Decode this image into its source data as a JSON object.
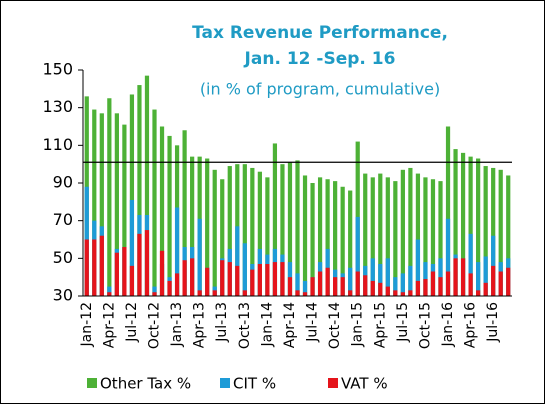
{
  "chart_data": {
    "type": "bar",
    "title": [
      "Tax Revenue Performance,",
      "Jan. 12 -Sep. 16"
    ],
    "subtitle": "(in % of program, cumulative)",
    "categories": [
      "Jan-12",
      null,
      null,
      "Apr-12",
      null,
      null,
      "Jul-12",
      null,
      null,
      "Oct-12",
      null,
      null,
      "Jan-13",
      null,
      null,
      "Apr-13",
      null,
      null,
      "Jul-13",
      null,
      null,
      "Oct-13",
      null,
      null,
      "Jan-14",
      null,
      null,
      "Apr-14",
      null,
      null,
      "Jul-14",
      null,
      null,
      "Oct-14",
      null,
      null,
      "Jan-15",
      null,
      null,
      "Apr-15",
      null,
      null,
      "Jul-15",
      null,
      null,
      "Oct-15",
      null,
      null,
      "Jan-16",
      null,
      null,
      "Apr-16",
      null,
      null,
      "Jul-16",
      null,
      null
    ],
    "series": [
      {
        "name": "Other Tax %",
        "color": "#4db136",
        "values": [
          136,
          129,
          127,
          135,
          127,
          121,
          137,
          142,
          147,
          129,
          120,
          115,
          110,
          118,
          104,
          104,
          103,
          97,
          92,
          99,
          100,
          100,
          98,
          96,
          93,
          111,
          100,
          101,
          102,
          94,
          90,
          93,
          92,
          91,
          88,
          86,
          112,
          95,
          93,
          95,
          93,
          91,
          97,
          98,
          95,
          93,
          92,
          91,
          120,
          108,
          106,
          104,
          103,
          99,
          98,
          97,
          94
        ]
      },
      {
        "name": "CIT %",
        "color": "#1e9bd7",
        "values": [
          88,
          70,
          67,
          35,
          55,
          56,
          81,
          73,
          73,
          35,
          47,
          40,
          77,
          56,
          56,
          71,
          45,
          35,
          50,
          55,
          67,
          58,
          47,
          55,
          52,
          55,
          52,
          48,
          42,
          38,
          40,
          48,
          55,
          44,
          42,
          45,
          72,
          46,
          50,
          47,
          50,
          40,
          42,
          46,
          60,
          48,
          47,
          50,
          71,
          52,
          50,
          63,
          48,
          51,
          62,
          48,
          50
        ]
      },
      {
        "name": "VAT %",
        "color": "#e5141b",
        "values": [
          60,
          60,
          62,
          32,
          53,
          56,
          46,
          63,
          65,
          32,
          54,
          38,
          42,
          49,
          50,
          33,
          45,
          33,
          49,
          48,
          46,
          33,
          44,
          47,
          47,
          48,
          48,
          40,
          33,
          32,
          40,
          43,
          45,
          40,
          40,
          33,
          43,
          41,
          38,
          37,
          35,
          33,
          32,
          33,
          38,
          39,
          43,
          40,
          43,
          50,
          50,
          42,
          33,
          37,
          46,
          43,
          45
        ]
      }
    ],
    "reference_line": 101,
    "ylim": [
      30,
      150
    ],
    "yticks": [
      30,
      50,
      70,
      90,
      110,
      130,
      150
    ]
  }
}
